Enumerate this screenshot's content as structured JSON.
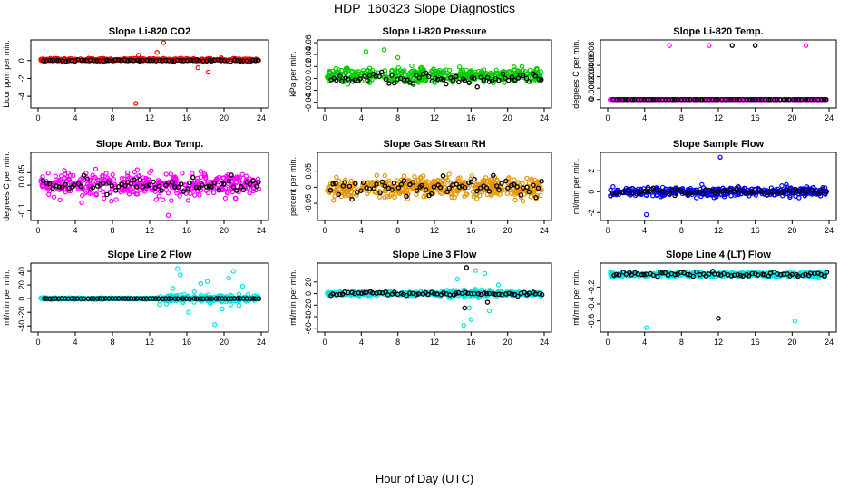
{
  "figure": {
    "title": "HDP_160323  Slope Diagnostics",
    "xlabel": "Hour of Day (UTC)"
  },
  "chart_data": [
    {
      "type": "scatter",
      "title": "Slope Li-820 CO2",
      "ylabel": "Licor ppm per min.",
      "xlim": [
        0,
        24
      ],
      "xticks": [
        0,
        4,
        8,
        12,
        16,
        20,
        24
      ],
      "ylim": [
        -5,
        2
      ],
      "yticks": [
        -4,
        -2,
        0
      ],
      "color": "#ff0000",
      "center": 0.1,
      "spread": 0.15,
      "outliers": [
        [
          10.5,
          -4.8
        ],
        [
          13.5,
          2.0
        ],
        [
          12.8,
          0.9
        ],
        [
          17.2,
          -0.8
        ],
        [
          18.3,
          -1.3
        ],
        [
          10.8,
          0.6
        ]
      ],
      "black_center": 0.0,
      "black_spread": 0.12
    },
    {
      "type": "scatter",
      "title": "Slope Li-820 Pressure",
      "ylabel": "kPa per min.",
      "xlim": [
        0,
        24
      ],
      "xticks": [
        0,
        4,
        8,
        12,
        16,
        20,
        24
      ],
      "ylim": [
        -0.045,
        0.06
      ],
      "yticks": [
        -0.04,
        -0.02,
        0.0,
        0.02,
        0.04,
        0.06
      ],
      "color": "#00cc00",
      "center": 0.005,
      "spread": 0.012,
      "outliers": [
        [
          4.5,
          0.045
        ],
        [
          6.5,
          0.048
        ],
        [
          8.0,
          0.035
        ]
      ],
      "black_center": 0.0,
      "black_spread": 0.012
    },
    {
      "type": "scatter",
      "title": "Slope Li-820 Temp.",
      "ylabel": "degrees C per min.",
      "xlim": [
        0,
        24
      ],
      "xticks": [
        0,
        4,
        8,
        12,
        16,
        20,
        24
      ],
      "ylim": [
        -0.0001,
        0.001
      ],
      "yticks": [
        0.0,
        0.0002,
        0.0004,
        0.0006,
        0.0008
      ],
      "color": "#ff00ff",
      "center": 0.0,
      "spread": 0.0,
      "outliers": [
        [
          6.7,
          0.00095
        ],
        [
          11.0,
          0.00095
        ],
        [
          21.5,
          0.00095
        ]
      ],
      "black_center": 0.0,
      "black_spread": 0.0,
      "black_outliers": [
        [
          13.5,
          0.00095
        ],
        [
          16.0,
          0.00095
        ]
      ]
    },
    {
      "type": "scatter",
      "title": "Slope Amb. Box Temp.",
      "ylabel": "degrees C per min.",
      "xlim": [
        0,
        24
      ],
      "xticks": [
        0,
        4,
        8,
        12,
        16,
        20,
        24
      ],
      "ylim": [
        -0.13,
        0.12
      ],
      "yticks": [
        -0.1,
        0.0,
        0.05
      ],
      "color": "#ff00ff",
      "center": 0.0,
      "spread": 0.05,
      "outliers": [
        [
          14.0,
          -0.12
        ]
      ],
      "black_center": 0.0,
      "black_spread": 0.04
    },
    {
      "type": "scatter",
      "title": "Slope Gas Stream RH",
      "ylabel": "percent per min.",
      "xlim": [
        0,
        24
      ],
      "xticks": [
        0,
        4,
        8,
        12,
        16,
        20,
        24
      ],
      "ylim": [
        -0.095,
        0.1
      ],
      "yticks": [
        -0.05,
        0.0,
        0.05
      ],
      "color": "#e69500",
      "center": 0.0,
      "spread": 0.035,
      "outliers": [],
      "black_center": 0.0,
      "black_spread": 0.035
    },
    {
      "type": "scatter",
      "title": "Slope Sample Flow",
      "ylabel": "ml/min per min.",
      "xlim": [
        0,
        24
      ],
      "xticks": [
        0,
        4,
        8,
        12,
        16,
        20,
        24
      ],
      "ylim": [
        -2.5,
        3.5
      ],
      "yticks": [
        -2,
        0,
        2
      ],
      "color": "#0000ff",
      "center": 0.0,
      "spread": 0.5,
      "outliers": [
        [
          12.2,
          3.3
        ],
        [
          4.2,
          -2.2
        ]
      ],
      "black_center": 0.0,
      "black_spread": 0.4
    },
    {
      "type": "scatter",
      "title": "Slope Line 2 Flow",
      "ylabel": "ml/min per min.",
      "xlim": [
        0,
        24
      ],
      "xticks": [
        0,
        4,
        8,
        12,
        16,
        20,
        24
      ],
      "ylim": [
        -45,
        48
      ],
      "yticks": [
        -40,
        -20,
        0,
        20,
        40
      ],
      "color": "#00e5e5",
      "center": 0.0,
      "spread": 1.5,
      "outliers": [
        [
          15.0,
          44
        ],
        [
          15.3,
          35
        ],
        [
          16.2,
          -20
        ],
        [
          17.5,
          22
        ],
        [
          19.0,
          -38
        ],
        [
          19.8,
          -15
        ],
        [
          20.5,
          30
        ],
        [
          21.0,
          40
        ],
        [
          22.0,
          18
        ],
        [
          14.5,
          15
        ],
        [
          18.2,
          25
        ],
        [
          21.6,
          -10
        ],
        [
          13.8,
          -8
        ],
        [
          16.8,
          10
        ]
      ],
      "black_center": 0.0,
      "black_spread": 0.3
    },
    {
      "type": "scatter",
      "title": "Slope Line 3 Flow",
      "ylabel": "ml/min per min.",
      "xlim": [
        0,
        24
      ],
      "xticks": [
        0,
        4,
        8,
        12,
        16,
        20,
        24
      ],
      "ylim": [
        -62,
        48
      ],
      "yticks": [
        -60,
        -40,
        -20,
        0,
        20
      ],
      "color": "#00e5e5",
      "center": 0.0,
      "spread": 4,
      "outliers": [
        [
          15.2,
          -55
        ],
        [
          16.0,
          -45
        ],
        [
          14.5,
          25
        ],
        [
          17.5,
          35
        ],
        [
          18.0,
          -30
        ],
        [
          16.5,
          40
        ],
        [
          15.8,
          -25
        ],
        [
          19.0,
          15
        ]
      ],
      "black_center": 0.0,
      "black_spread": 4,
      "black_outliers": [
        [
          15.5,
          45
        ],
        [
          15.3,
          -25
        ],
        [
          17.8,
          -15
        ]
      ]
    },
    {
      "type": "scatter",
      "title": "Slope Line 4 (LT) Flow",
      "ylabel": "ml/min per min.",
      "xlim": [
        0,
        24
      ],
      "xticks": [
        0,
        4,
        8,
        12,
        16,
        20,
        24
      ],
      "ylim": [
        -0.7,
        0.05
      ],
      "yticks": [
        -0.6,
        -0.4,
        -0.2
      ],
      "color": "#00e5e5",
      "center": -0.05,
      "spread": 0.03,
      "outliers": [
        [
          4.2,
          -0.68
        ],
        [
          20.3,
          -0.6
        ]
      ],
      "black_center": -0.05,
      "black_spread": 0.03,
      "black_outliers": [
        [
          12.0,
          -0.57
        ]
      ]
    }
  ]
}
